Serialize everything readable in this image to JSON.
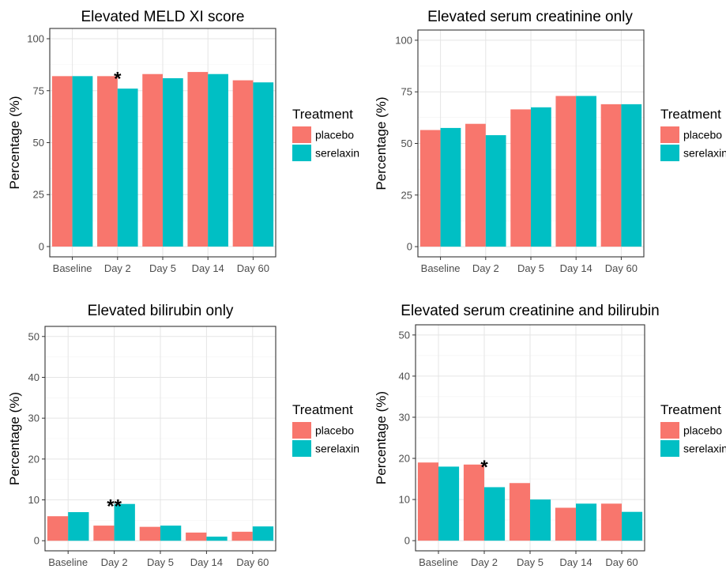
{
  "chart_data": [
    {
      "type": "bar",
      "title": "Elevated MELD XI score",
      "xlabel": "",
      "ylabel": "Percentage (%)",
      "categories": [
        "Baseline",
        "Day 2",
        "Day 5",
        "Day 14",
        "Day 60"
      ],
      "ylim": [
        0,
        100
      ],
      "yticks": [
        "0",
        "25",
        "50",
        "75",
        "100"
      ],
      "series": [
        {
          "name": "placebo",
          "values": [
            82,
            82,
            83,
            84,
            80
          ]
        },
        {
          "name": "serelaxin",
          "values": [
            82,
            76,
            81,
            83,
            79
          ]
        }
      ],
      "annotations": [
        {
          "text": "*",
          "category": "Day 2"
        }
      ],
      "legend": {
        "title": "Treatment",
        "placement": "right"
      },
      "grid": true
    },
    {
      "type": "bar",
      "title": "Elevated serum creatinine only",
      "xlabel": "",
      "ylabel": "Percentage (%)",
      "categories": [
        "Baseline",
        "Day 2",
        "Day 5",
        "Day 14",
        "Day 60"
      ],
      "ylim": [
        0,
        100
      ],
      "yticks": [
        "0",
        "25",
        "50",
        "75",
        "100"
      ],
      "series": [
        {
          "name": "placebo",
          "values": [
            56.5,
            59.5,
            66.5,
            73,
            69
          ]
        },
        {
          "name": "serelaxin",
          "values": [
            57.5,
            54,
            67.5,
            73,
            69
          ]
        }
      ],
      "annotations": [],
      "legend": {
        "title": "Treatment",
        "placement": "right"
      },
      "grid": true
    },
    {
      "type": "bar",
      "title": "Elevated bilirubin only",
      "xlabel": "",
      "ylabel": "Percentage (%)",
      "categories": [
        "Baseline",
        "Day 2",
        "Day 5",
        "Day 14",
        "Day 60"
      ],
      "ylim": [
        0,
        50
      ],
      "yticks": [
        "0",
        "10",
        "20",
        "30",
        "40",
        "50"
      ],
      "series": [
        {
          "name": "placebo",
          "values": [
            6,
            3.7,
            3.4,
            2,
            2.2
          ]
        },
        {
          "name": "serelaxin",
          "values": [
            7,
            9,
            3.7,
            1,
            3.5
          ]
        }
      ],
      "annotations": [
        {
          "text": "**",
          "category": "Day 2"
        }
      ],
      "legend": {
        "title": "Treatment",
        "placement": "right"
      },
      "grid": true
    },
    {
      "type": "bar",
      "title": "Elevated serum creatinine and bilirubin",
      "xlabel": "",
      "ylabel": "Percentage (%)",
      "categories": [
        "Baseline",
        "Day 2",
        "Day 5",
        "Day 14",
        "Day 60"
      ],
      "ylim": [
        0,
        50
      ],
      "yticks": [
        "0",
        "10",
        "20",
        "30",
        "40",
        "50"
      ],
      "series": [
        {
          "name": "placebo",
          "values": [
            19,
            18.5,
            14,
            8,
            9
          ]
        },
        {
          "name": "serelaxin",
          "values": [
            18,
            13,
            10,
            9,
            7
          ]
        }
      ],
      "annotations": [
        {
          "text": "*",
          "category": "Day 2"
        }
      ],
      "legend": {
        "title": "Treatment",
        "placement": "right"
      },
      "grid": true
    }
  ],
  "colors": {
    "placebo": "#f8766d",
    "serelaxin": "#00bfc4"
  }
}
